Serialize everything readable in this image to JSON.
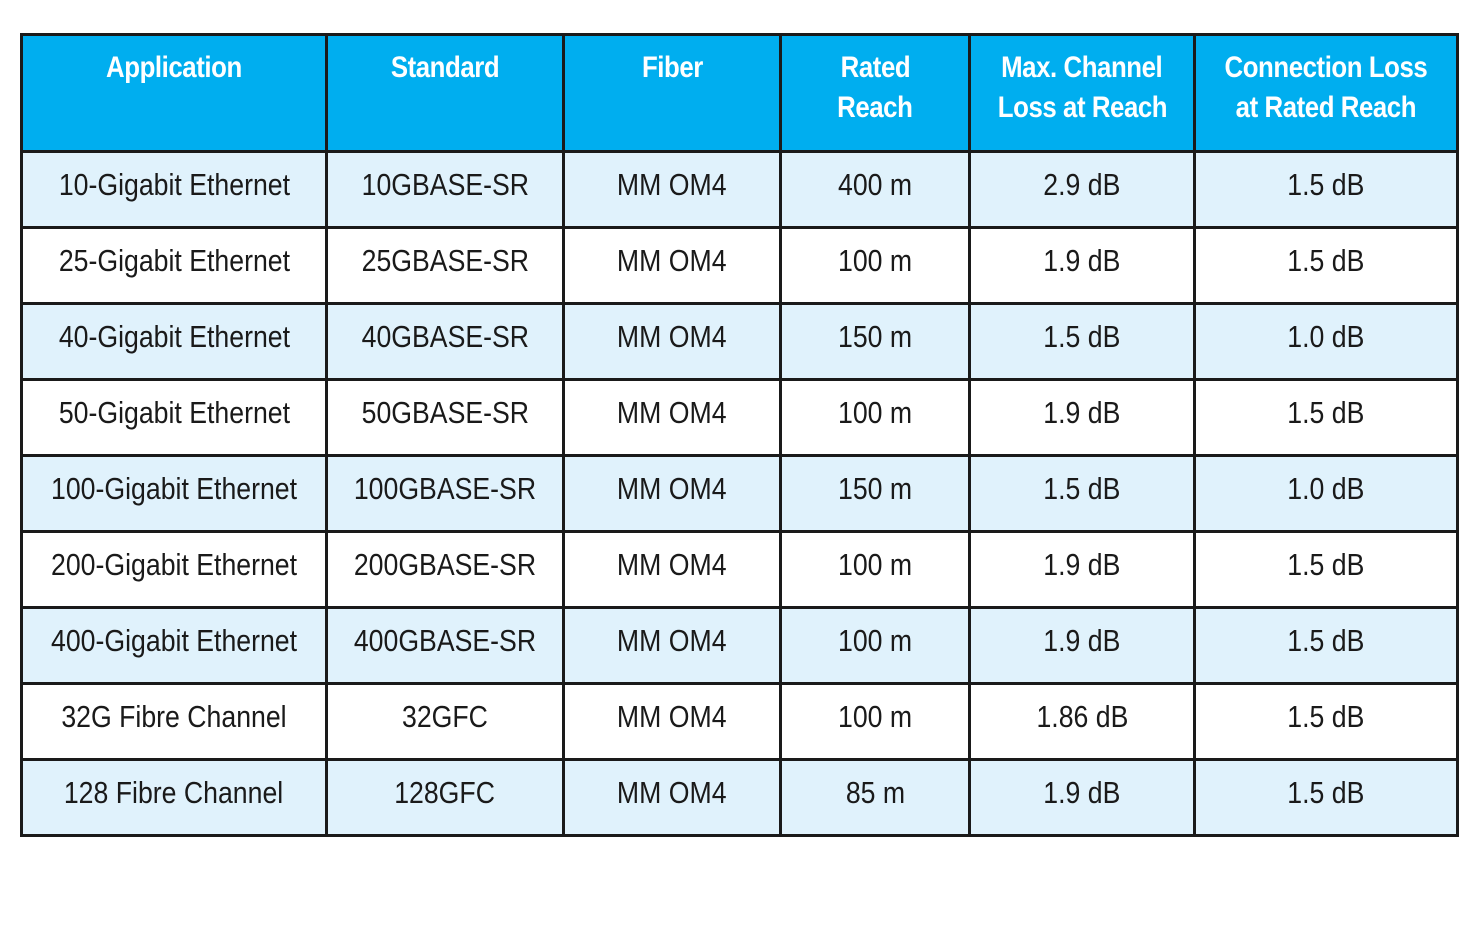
{
  "table": {
    "headers": [
      [
        "Application"
      ],
      [
        "Standard"
      ],
      [
        "Fiber"
      ],
      [
        "Rated",
        "Reach"
      ],
      [
        "Max. Channel",
        "Loss at Reach"
      ],
      [
        "Connection Loss",
        "at Rated Reach"
      ]
    ],
    "rows": [
      [
        "10-Gigabit Ethernet",
        "10GBASE-SR",
        "MM OM4",
        "400 m",
        "2.9 dB",
        "1.5 dB"
      ],
      [
        "25-Gigabit Ethernet",
        "25GBASE-SR",
        "MM OM4",
        "100 m",
        "1.9 dB",
        "1.5 dB"
      ],
      [
        "40-Gigabit Ethernet",
        "40GBASE-SR",
        "MM OM4",
        "150 m",
        "1.5 dB",
        "1.0 dB"
      ],
      [
        "50-Gigabit Ethernet",
        "50GBASE-SR",
        "MM OM4",
        "100 m",
        "1.9 dB",
        "1.5 dB"
      ],
      [
        "100-Gigabit Ethernet",
        "100GBASE-SR",
        "MM OM4",
        "150 m",
        "1.5 dB",
        "1.0 dB"
      ],
      [
        "200-Gigabit Ethernet",
        "200GBASE-SR",
        "MM OM4",
        "100 m",
        "1.9 dB",
        "1.5 dB"
      ],
      [
        "400-Gigabit Ethernet",
        "400GBASE-SR",
        "MM OM4",
        "100 m",
        "1.9 dB",
        "1.5 dB"
      ],
      [
        "32G Fibre Channel",
        "32GFC",
        "MM OM4",
        "100 m",
        "1.86 dB",
        "1.5 dB"
      ],
      [
        "128 Fibre Channel",
        "128GFC",
        "MM OM4",
        "85 m",
        "1.9 dB",
        "1.5 dB"
      ]
    ]
  },
  "colors": {
    "header_bg": "#00aeef",
    "header_text": "#ffffff",
    "shaded_row_bg": "#e0f2fc",
    "plain_row_bg": "#ffffff",
    "border": "#1a1a1a"
  }
}
